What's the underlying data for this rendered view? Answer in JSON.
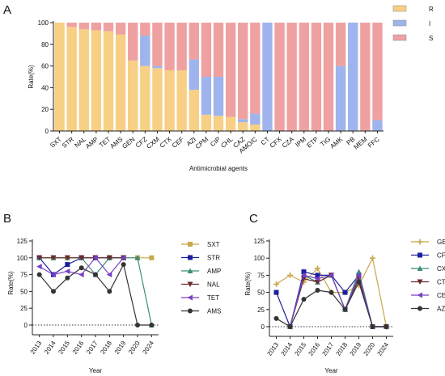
{
  "chart_data": [
    {
      "panel": "A",
      "type": "bar",
      "stacked": true,
      "xlabel": "Antimicrobial agents",
      "ylabel": "Rate(%)",
      "ylim": [
        0,
        100
      ],
      "yticks": [
        0,
        20,
        40,
        60,
        80,
        100
      ],
      "categories": [
        "SXT",
        "STR",
        "NAL",
        "AMP",
        "TET",
        "AMS",
        "GEN",
        "CFZ",
        "CXM",
        "CTX",
        "CEF",
        "AZI",
        "CPM",
        "CIP",
        "CHL",
        "CAZ",
        "AMO/C",
        "CT",
        "CFX",
        "CZA",
        "IPM",
        "ETP",
        "TIG",
        "AMK",
        "PB",
        "MEM",
        "FFC"
      ],
      "series": [
        {
          "name": "R",
          "color": "#f7cf85",
          "values": [
            100,
            96,
            94,
            93,
            92,
            89,
            65,
            60,
            58,
            56,
            56,
            38,
            15,
            14,
            13,
            8,
            6,
            0,
            0,
            0,
            0,
            0,
            0,
            0,
            0,
            0,
            0
          ]
        },
        {
          "name": "I",
          "color": "#9fb4ec",
          "values": [
            0,
            0,
            0,
            0,
            0,
            0,
            0,
            28,
            2,
            0,
            0,
            28,
            35,
            36,
            0,
            3,
            10,
            100,
            0,
            0,
            0,
            0,
            0,
            60,
            100,
            0,
            10
          ]
        },
        {
          "name": "S",
          "color": "#efa1a1",
          "values": [
            0,
            4,
            6,
            7,
            8,
            11,
            35,
            12,
            40,
            44,
            44,
            34,
            50,
            50,
            87,
            89,
            84,
            0,
            100,
            100,
            100,
            100,
            100,
            40,
            0,
            100,
            90
          ]
        }
      ],
      "legend_position": "top-right"
    },
    {
      "panel": "B",
      "type": "line",
      "xlabel": "Year",
      "ylabel": "Rate(%)",
      "ylim": [
        0,
        125
      ],
      "yticks": [
        0,
        25,
        50,
        75,
        100,
        125
      ],
      "x": [
        "2013",
        "2014",
        "2015",
        "2016",
        "2017",
        "2018",
        "2019",
        "2020",
        "2024"
      ],
      "series": [
        {
          "name": "SXT",
          "color": "#c8a84b",
          "marker": "square",
          "values": [
            100,
            100,
            100,
            100,
            100,
            100,
            100,
            100,
            100
          ]
        },
        {
          "name": "STR",
          "color": "#1c1f9c",
          "marker": "square",
          "values": [
            100,
            75,
            90,
            100,
            100,
            100,
            100,
            null,
            null
          ]
        },
        {
          "name": "AMP",
          "color": "#3c8c7a",
          "marker": "triangle",
          "values": [
            100,
            100,
            100,
            100,
            75,
            100,
            100,
            100,
            0
          ]
        },
        {
          "name": "NAL",
          "color": "#6b2a2a",
          "marker": "triangle-down",
          "values": [
            100,
            100,
            100,
            100,
            100,
            100,
            100,
            null,
            null
          ]
        },
        {
          "name": "TET",
          "color": "#7a3fc4",
          "marker": "triangle-left",
          "values": [
            87,
            75,
            80,
            75,
            100,
            75,
            100,
            null,
            null
          ]
        },
        {
          "name": "AMS",
          "color": "#333333",
          "marker": "circle",
          "values": [
            75,
            50,
            70,
            85,
            75,
            50,
            90,
            0,
            0
          ]
        }
      ],
      "legend_position": "right"
    },
    {
      "panel": "C",
      "type": "line",
      "xlabel": "Year",
      "ylabel": "Rate(%)",
      "ylim": [
        0,
        125
      ],
      "yticks": [
        0,
        25,
        50,
        75,
        100,
        125
      ],
      "x": [
        "2013",
        "2014",
        "2015",
        "2016",
        "2017",
        "2018",
        "2019",
        "2020",
        "2024"
      ],
      "series": [
        {
          "name": "GEN",
          "color": "#c8a84b",
          "marker": "plus",
          "values": [
            62,
            75,
            65,
            85,
            50,
            50,
            60,
            100,
            0
          ]
        },
        {
          "name": "CFZ",
          "color": "#1c1f9c",
          "marker": "square",
          "values": [
            50,
            0,
            80,
            75,
            75,
            50,
            75,
            0,
            0
          ]
        },
        {
          "name": "CXM",
          "color": "#3c8c7a",
          "marker": "triangle",
          "values": [
            null,
            0,
            75,
            65,
            75,
            25,
            80,
            0,
            0
          ]
        },
        {
          "name": "CTX",
          "color": "#6b2a2a",
          "marker": "triangle-down",
          "values": [
            null,
            0,
            70,
            65,
            75,
            25,
            70,
            0,
            0
          ]
        },
        {
          "name": "CEF",
          "color": "#7a3fc4",
          "marker": "triangle-left",
          "values": [
            null,
            0,
            75,
            70,
            75,
            25,
            75,
            0,
            0
          ]
        },
        {
          "name": "AZI",
          "color": "#333333",
          "marker": "circle",
          "values": [
            12,
            0,
            40,
            53,
            50,
            25,
            65,
            0,
            0
          ]
        }
      ],
      "legend_position": "right"
    }
  ]
}
